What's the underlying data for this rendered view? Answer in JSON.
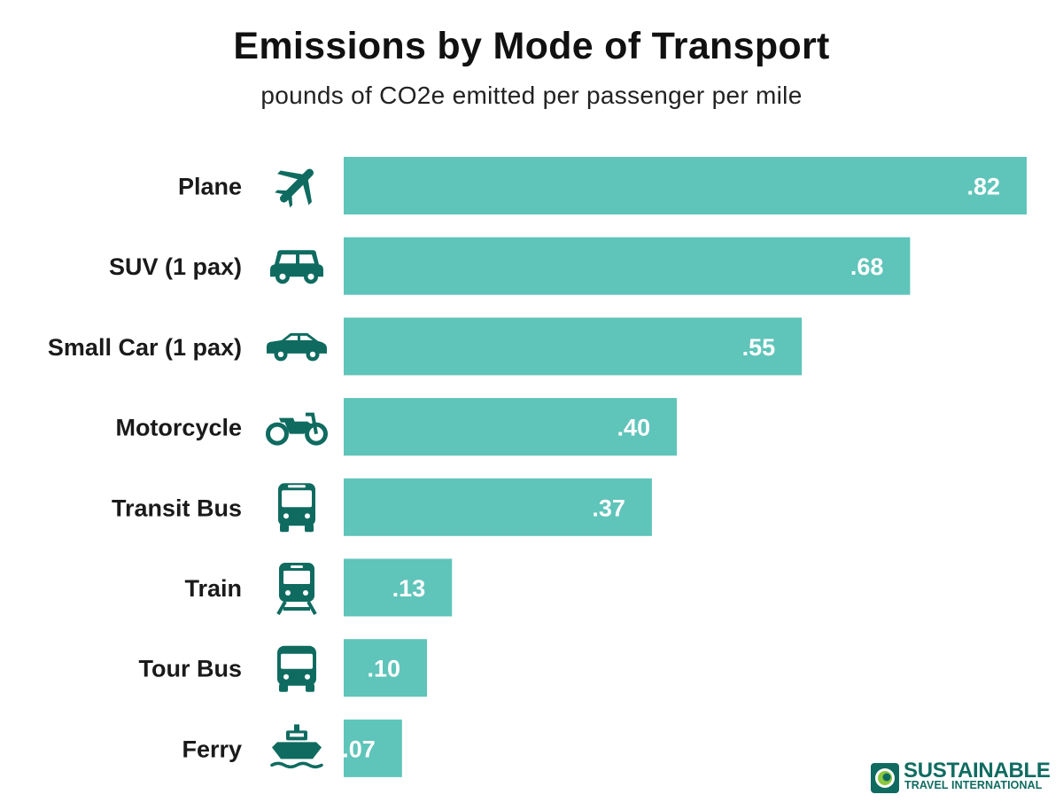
{
  "chart_data": {
    "type": "bar",
    "orientation": "horizontal",
    "title": "Emissions by Mode of Transport",
    "subtitle": "pounds of CO2e emitted per passenger per mile",
    "categories": [
      "Plane",
      "SUV (1 pax)",
      "Small Car (1 pax)",
      "Motorcycle",
      "Transit Bus",
      "Train",
      "Tour Bus",
      "Ferry"
    ],
    "values": [
      0.82,
      0.68,
      0.55,
      0.4,
      0.37,
      0.13,
      0.1,
      0.07
    ],
    "value_labels": [
      ".82",
      ".68",
      ".55",
      ".40",
      ".37",
      ".13",
      ".10",
      ".07"
    ],
    "icons": [
      "plane-icon",
      "suv-icon",
      "small-car-icon",
      "motorcycle-icon",
      "transit-bus-icon",
      "train-icon",
      "tour-bus-icon",
      "ferry-icon"
    ],
    "xlim": [
      0,
      0.82
    ],
    "grid": false,
    "legend": "none",
    "colors": {
      "bar": "#5fc4b9",
      "icon": "#0f6b60",
      "value_text": "#ffffff"
    }
  },
  "logo": {
    "name": "SUSTAINABLE",
    "subtitle": "TRAVEL INTERNATIONAL",
    "color": "#0f6b60",
    "accent": "#8dc63f"
  }
}
